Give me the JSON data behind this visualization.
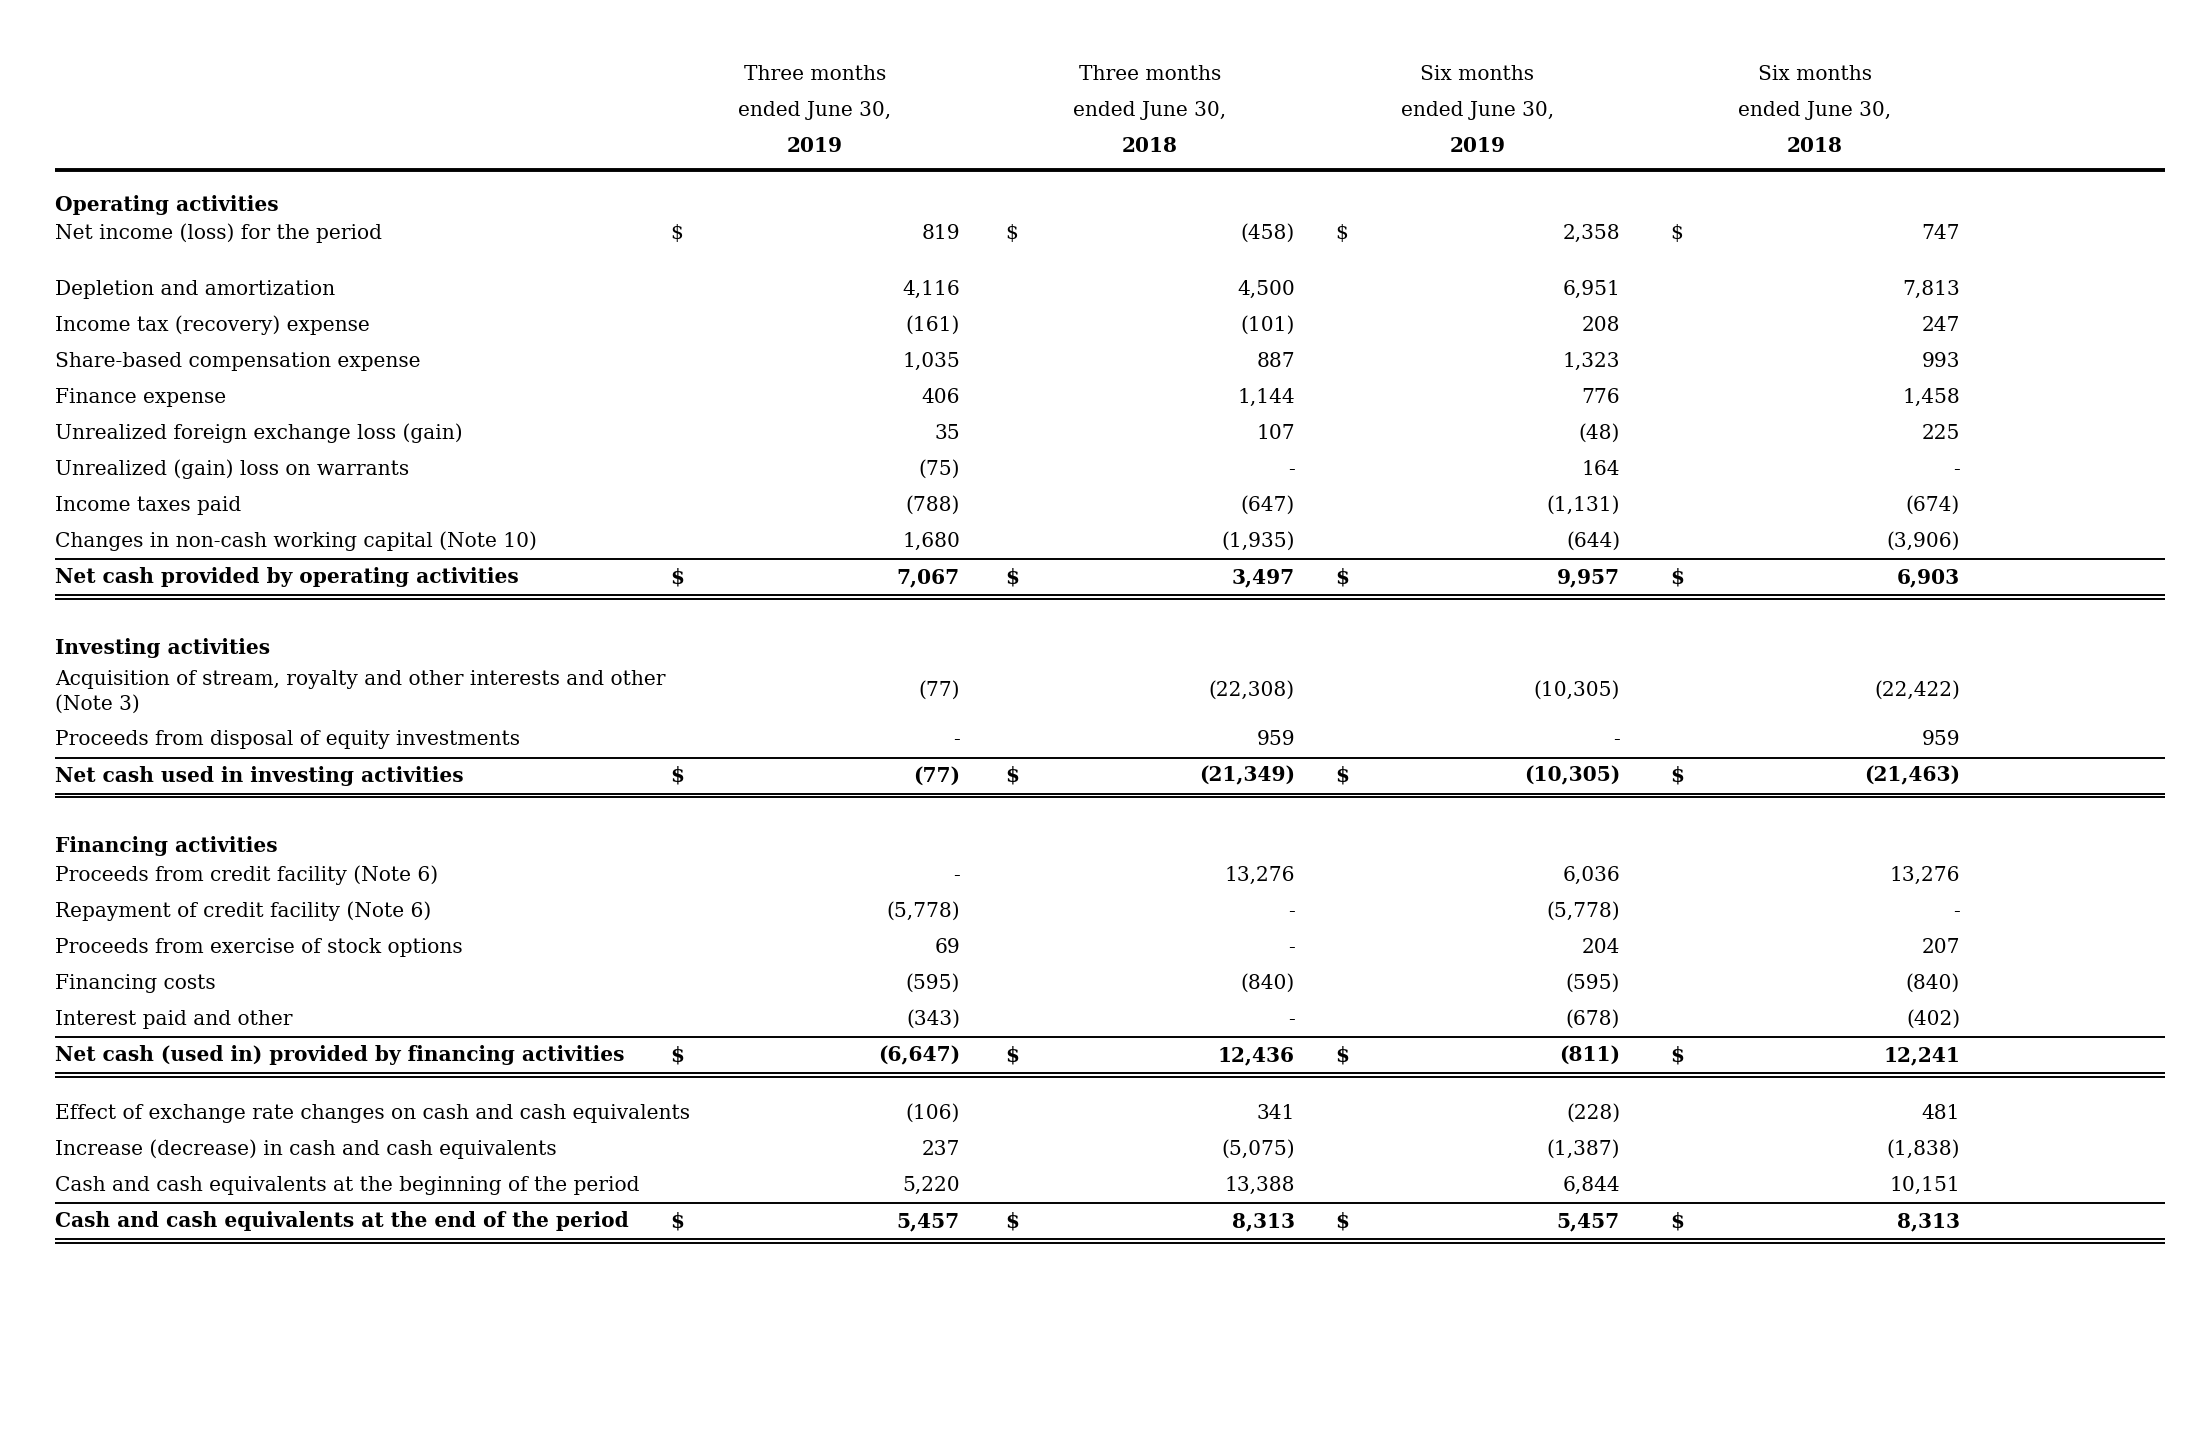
{
  "col_headers": [
    "Three months\nended June 30,\n2019",
    "Three months\nended June 30,\n2018",
    "Six months\nended June 30,\n2019",
    "Six months\nended June 30,\n2018"
  ],
  "sections": [
    {
      "header": "Operating activities",
      "rows": [
        {
          "label": "Net income (loss) for the period",
          "values": [
            "819",
            "(458)",
            "2,358",
            "747"
          ],
          "dollar": true,
          "bold": false,
          "spacer_after": true
        },
        {
          "label": "Depletion and amortization",
          "values": [
            "4,116",
            "4,500",
            "6,951",
            "7,813"
          ],
          "dollar": false,
          "bold": false
        },
        {
          "label": "Income tax (recovery) expense",
          "values": [
            "(161)",
            "(101)",
            "208",
            "247"
          ],
          "dollar": false,
          "bold": false
        },
        {
          "label": "Share-based compensation expense",
          "values": [
            "1,035",
            "887",
            "1,323",
            "993"
          ],
          "dollar": false,
          "bold": false
        },
        {
          "label": "Finance expense",
          "values": [
            "406",
            "1,144",
            "776",
            "1,458"
          ],
          "dollar": false,
          "bold": false
        },
        {
          "label": "Unrealized foreign exchange loss (gain)",
          "values": [
            "35",
            "107",
            "(48)",
            "225"
          ],
          "dollar": false,
          "bold": false
        },
        {
          "label": "Unrealized (gain) loss on warrants",
          "values": [
            "(75)",
            "-",
            "164",
            "-"
          ],
          "dollar": false,
          "bold": false
        },
        {
          "label": "Income taxes paid",
          "values": [
            "(788)",
            "(647)",
            "(1,131)",
            "(674)"
          ],
          "dollar": false,
          "bold": false
        },
        {
          "label": "Changes in non-cash working capital (Note 10)",
          "values": [
            "1,680",
            "(1,935)",
            "(644)",
            "(3,906)"
          ],
          "dollar": false,
          "bold": false,
          "line_below": true
        },
        {
          "label": "Net cash provided by operating activities",
          "values": [
            "7,067",
            "3,497",
            "9,957",
            "6,903"
          ],
          "dollar": true,
          "bold": true,
          "double_line_below": true
        }
      ]
    },
    {
      "header": "Investing activities",
      "rows": [
        {
          "label": "Acquisition of stream, royalty and other interests and other\n(Note 3)",
          "values": [
            "(77)",
            "(22,308)",
            "(10,305)",
            "(22,422)"
          ],
          "dollar": false,
          "bold": false,
          "multiline": true
        },
        {
          "label": "Proceeds from disposal of equity investments",
          "values": [
            "-",
            "959",
            "-",
            "959"
          ],
          "dollar": false,
          "bold": false,
          "line_below": true
        },
        {
          "label": "Net cash used in investing activities",
          "values": [
            "(77)",
            "(21,349)",
            "(10,305)",
            "(21,463)"
          ],
          "dollar": true,
          "bold": true,
          "double_line_below": true
        }
      ]
    },
    {
      "header": "Financing activities",
      "rows": [
        {
          "label": "Proceeds from credit facility (Note 6)",
          "values": [
            "-",
            "13,276",
            "6,036",
            "13,276"
          ],
          "dollar": false,
          "bold": false
        },
        {
          "label": "Repayment of credit facility (Note 6)",
          "values": [
            "(5,778)",
            "-",
            "(5,778)",
            "-"
          ],
          "dollar": false,
          "bold": false
        },
        {
          "label": "Proceeds from exercise of stock options",
          "values": [
            "69",
            "-",
            "204",
            "207"
          ],
          "dollar": false,
          "bold": false
        },
        {
          "label": "Financing costs",
          "values": [
            "(595)",
            "(840)",
            "(595)",
            "(840)"
          ],
          "dollar": false,
          "bold": false
        },
        {
          "label": "Interest paid and other",
          "values": [
            "(343)",
            "-",
            "(678)",
            "(402)"
          ],
          "dollar": false,
          "bold": false,
          "line_below": true
        },
        {
          "label": "Net cash (used in) provided by financing activities",
          "values": [
            "(6,647)",
            "12,436",
            "(811)",
            "12,241"
          ],
          "dollar": true,
          "bold": true,
          "double_line_below": true
        }
      ]
    },
    {
      "header": "",
      "rows": [
        {
          "label": "Effect of exchange rate changes on cash and cash equivalents",
          "values": [
            "(106)",
            "341",
            "(228)",
            "481"
          ],
          "dollar": false,
          "bold": false
        },
        {
          "label": "Increase (decrease) in cash and cash equivalents",
          "values": [
            "237",
            "(5,075)",
            "(1,387)",
            "(1,838)"
          ],
          "dollar": false,
          "bold": false
        },
        {
          "label": "Cash and cash equivalents at the beginning of the period",
          "values": [
            "5,220",
            "13,388",
            "6,844",
            "10,151"
          ],
          "dollar": false,
          "bold": false,
          "line_below": true
        },
        {
          "label": "Cash and cash equivalents at the end of the period",
          "values": [
            "5,457",
            "8,313",
            "5,457",
            "8,313"
          ],
          "dollar": true,
          "bold": true,
          "double_line_below": true
        }
      ]
    }
  ],
  "bg_color": "#ffffff",
  "text_color": "#000000",
  "font_size": 14.5
}
